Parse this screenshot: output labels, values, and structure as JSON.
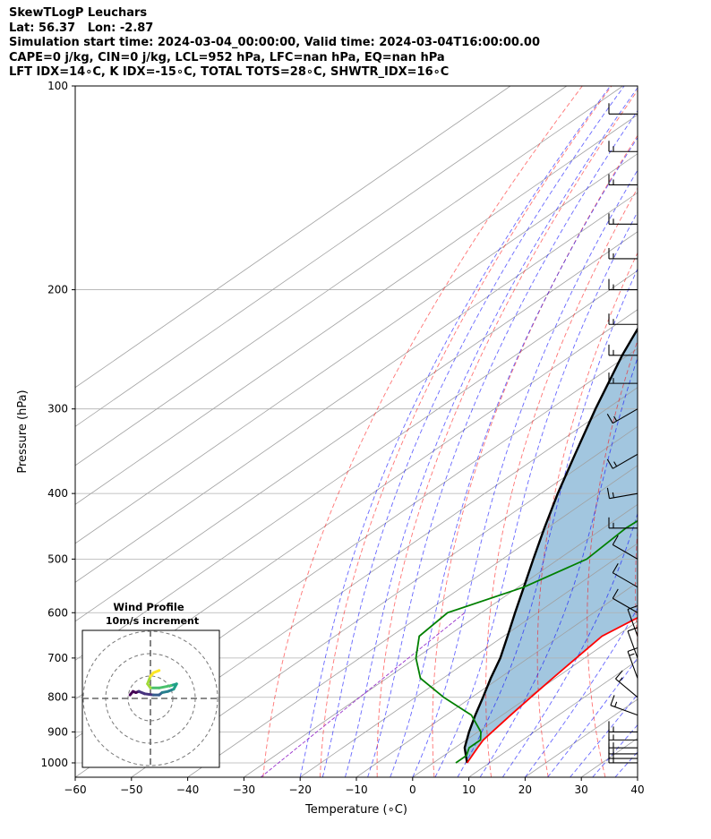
{
  "header": {
    "lines": [
      "SkewTLogP Leuchars",
      "Lat: 56.37   Lon: -2.87",
      "Simulation start time: 2024-03-04_00:00:00, Valid time: 2024-03-04T16:00:00.00",
      "CAPE=0 j/kg, CIN=0 j/kg, LCL=952 hPa, LFC=nan hPa, EQ=nan hPa",
      "LFT IDX=14∘C, K IDX=-15∘C, TOTAL TOTS=28∘C, SHWTR_IDX=16∘C"
    ]
  },
  "chart_data": {
    "type": "skewt",
    "xlabel": "Temperature (∘C)",
    "ylabel": "Pressure (hPa)",
    "xlim": [
      -60,
      40
    ],
    "ylim": [
      1050,
      100
    ],
    "x_ticks": [
      -60,
      -50,
      -40,
      -30,
      -20,
      -10,
      0,
      10,
      20,
      30,
      40
    ],
    "y_ticks": [
      100,
      200,
      300,
      400,
      500,
      600,
      700,
      800,
      900,
      1000
    ],
    "grid": true,
    "colors": {
      "temperature": "#ff0000",
      "dewpoint": "#008000",
      "parcel": "#000000",
      "fill": "#a2c6df",
      "dry_adiabats": "#ff0000",
      "moist_adiabats": "#0000ff",
      "isotherms": "#a0a0a0",
      "mixing_ratio": "#9932cc"
    },
    "temperature": {
      "p": [
        1000,
        975,
        950,
        925,
        900,
        850,
        800,
        750,
        700,
        650,
        600,
        550,
        500,
        450,
        400,
        350,
        300,
        250,
        225,
        200,
        175,
        150,
        125,
        110,
        100
      ],
      "t": [
        6.0,
        5.0,
        4.0,
        3.0,
        2.5,
        1.5,
        0.5,
        -0.5,
        -1.5,
        -2.5,
        -0.5,
        2.0,
        0.5,
        -4.5,
        -10.0,
        -15.5,
        -20.5,
        -25.0,
        -22.0,
        -15.0,
        -11.0,
        -6.5,
        0.0,
        4.0,
        7.0
      ]
    },
    "dewpoint": {
      "p": [
        1000,
        975,
        950,
        925,
        900,
        850,
        800,
        750,
        700,
        650,
        600,
        550,
        500,
        450,
        400,
        350,
        310,
        300,
        250,
        225,
        200,
        175,
        160,
        140,
        100
      ],
      "t": [
        4.0,
        4.0,
        2.5,
        2.5,
        0.5,
        -5.5,
        -15.0,
        -24.0,
        -30.0,
        -35.0,
        -36.0,
        -29.0,
        -25.0,
        -26.0,
        -25.0,
        -24.0,
        -29.0,
        -33.0,
        -39.0,
        -42.0,
        -45.0,
        -49.0,
        -56.0,
        -60.0,
        -66.0
      ]
    },
    "parcel": {
      "p": [
        1000,
        950,
        900,
        850,
        800,
        750,
        700,
        650,
        600,
        550,
        500,
        450,
        400,
        350,
        300,
        250,
        200,
        150,
        100
      ],
      "t": [
        6.0,
        1.7,
        -1.6,
        -4.8,
        -8.0,
        -11.5,
        -15.0,
        -19.3,
        -24.0,
        -29.0,
        -34.5,
        -40.5,
        -47.0,
        -54.0,
        -62.0,
        -71.0,
        -81.0,
        -93.0,
        -110.0
      ]
    },
    "wind_barbs": {
      "p": [
        1000,
        985,
        970,
        950,
        925,
        900,
        850,
        800,
        750,
        700,
        650,
        600,
        550,
        500,
        450,
        400,
        350,
        300,
        275,
        250,
        225,
        200,
        180,
        160,
        140,
        125,
        110
      ],
      "speed_kt": [
        15,
        15,
        15,
        15,
        15,
        15,
        15,
        15,
        15,
        10,
        10,
        10,
        10,
        10,
        15,
        15,
        15,
        15,
        15,
        15,
        15,
        15,
        15,
        15,
        15,
        15,
        10
      ],
      "dir_deg": [
        270,
        270,
        270,
        270,
        270,
        270,
        290,
        310,
        340,
        340,
        340,
        300,
        300,
        300,
        270,
        260,
        240,
        240,
        270,
        270,
        270,
        270,
        270,
        270,
        270,
        270,
        270
      ]
    },
    "inset": {
      "title": "Wind Profile",
      "subtitle": "10m/s increment",
      "hodograph_u": [
        -3.5,
        -3.0,
        -2.5,
        -2.0,
        -1.0,
        0.5,
        1.5,
        2.0,
        3.0,
        4.0,
        4.5,
        3.5,
        1.5,
        0.0,
        -0.5,
        0.0,
        0.5,
        1.5
      ],
      "hodograph_v": [
        0.6,
        1.2,
        1.0,
        1.2,
        0.8,
        0.6,
        0.6,
        1.0,
        1.2,
        1.6,
        2.5,
        2.2,
        1.8,
        1.8,
        2.5,
        3.8,
        4.4,
        4.8
      ]
    }
  }
}
